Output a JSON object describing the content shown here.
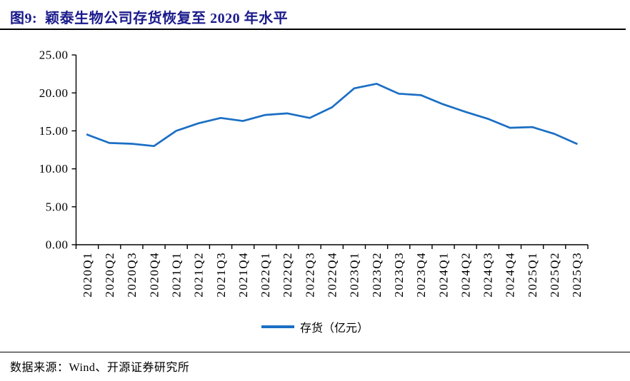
{
  "header": {
    "title": "图9:  颖泰生物公司存货恢复至 2020 年水平"
  },
  "chart_data": {
    "type": "line",
    "title": "颖泰生物公司存货恢复至 2020 年水平",
    "categories": [
      "2020Q1",
      "2020Q2",
      "2020Q3",
      "2020Q4",
      "2021Q1",
      "2021Q2",
      "2021Q3",
      "2021Q4",
      "2022Q1",
      "2022Q2",
      "2022Q3",
      "2022Q4",
      "2023Q1",
      "2023Q2",
      "2023Q3",
      "2023Q4",
      "2024Q1",
      "2024Q2",
      "2024Q3",
      "2024Q4",
      "2025Q1",
      "2025Q2",
      "2025Q3"
    ],
    "series": [
      {
        "name": "存货（亿元）",
        "values": [
          14.5,
          13.4,
          13.3,
          13.0,
          15.0,
          16.0,
          16.7,
          16.3,
          17.1,
          17.3,
          16.7,
          18.1,
          20.6,
          21.2,
          19.9,
          19.7,
          18.5,
          17.5,
          16.6,
          15.4,
          15.5,
          14.6,
          13.3
        ]
      }
    ],
    "xlabel": "",
    "ylabel": "",
    "ylim": [
      0,
      25
    ],
    "yticks": [
      0,
      5,
      10,
      15,
      20,
      25
    ],
    "ytick_labels": [
      "0.00",
      "5.00",
      "10.00",
      "15.00",
      "20.00",
      "25.00"
    ],
    "grid": false,
    "legend_position": "bottom"
  },
  "legend": {
    "label": "存货（亿元）"
  },
  "footer": {
    "source": "数据来源：Wind、开源证券研究所"
  },
  "colors": {
    "line": "#1B6FC4",
    "title": "#1A1A8C",
    "axis": "#000000",
    "text": "#000000"
  }
}
